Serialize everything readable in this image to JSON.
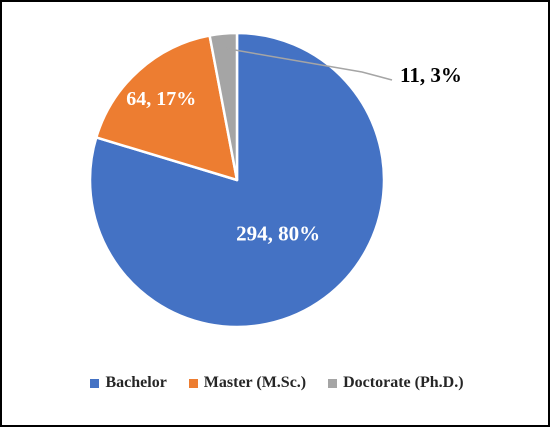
{
  "chart_data": {
    "type": "pie",
    "title": "",
    "categories": [
      "Bachelor",
      "Master (M.Sc.)",
      "Doctorate (Ph.D.)"
    ],
    "values": [
      294,
      64,
      11
    ],
    "percents": [
      "80%",
      "17%",
      "3%"
    ],
    "data_labels": [
      "294, 80%",
      "64, 17%",
      "11, 3%"
    ],
    "colors": [
      "#4472C4",
      "#ED7D31",
      "#A5A5A5"
    ],
    "label_colors": [
      "#FFFFFF",
      "#FFFFFF",
      "#000000"
    ],
    "legend_position": "bottom",
    "start_angle_deg": 0
  },
  "legend": {
    "items": [
      {
        "label": "Bachelor",
        "color": "#4472C4"
      },
      {
        "label": "Master (M.Sc.)",
        "color": "#ED7D31"
      },
      {
        "label": "Doctorate (Ph.D.)",
        "color": "#A5A5A5"
      }
    ]
  }
}
